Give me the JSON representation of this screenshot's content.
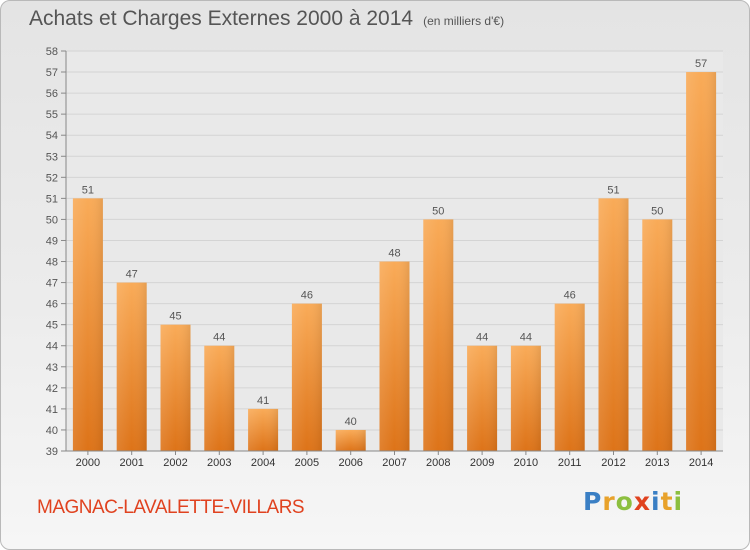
{
  "title": "Achats et Charges Externes 2000 à 2014",
  "subtitle": "(en milliers d'€)",
  "commune": "MAGNAC-LAVALETTE-VILLARS",
  "logo": {
    "text": "Proxiti",
    "letters": [
      {
        "ch": "P",
        "color": "#3a7fc4"
      },
      {
        "ch": "r",
        "color": "#e8a22b"
      },
      {
        "ch": "o",
        "color": "#8cbf3f"
      },
      {
        "ch": "x",
        "color": "#e0421f"
      },
      {
        "ch": "i",
        "color": "#3a7fc4"
      },
      {
        "ch": "t",
        "color": "#e8a22b"
      },
      {
        "ch": "i",
        "color": "#8cbf3f"
      }
    ]
  },
  "colors": {
    "bar_light": "#f7a24b",
    "bar_dark": "#e27a1d",
    "text": "#555555",
    "grid": "#cfcfcf",
    "commune": "#e0421f"
  },
  "chart_data": {
    "type": "bar",
    "categories": [
      "2000",
      "2001",
      "2002",
      "2003",
      "2004",
      "2005",
      "2006",
      "2007",
      "2008",
      "2009",
      "2010",
      "2011",
      "2012",
      "2013",
      "2014"
    ],
    "values": [
      51,
      47,
      45,
      44,
      41,
      46,
      40,
      48,
      50,
      44,
      44,
      46,
      51,
      50,
      57
    ],
    "ylim": [
      39,
      58
    ],
    "yticks": [
      39,
      40,
      41,
      42,
      43,
      44,
      45,
      46,
      47,
      48,
      49,
      50,
      51,
      52,
      53,
      54,
      55,
      56,
      57,
      58
    ],
    "grid": true,
    "data_labels": true
  }
}
